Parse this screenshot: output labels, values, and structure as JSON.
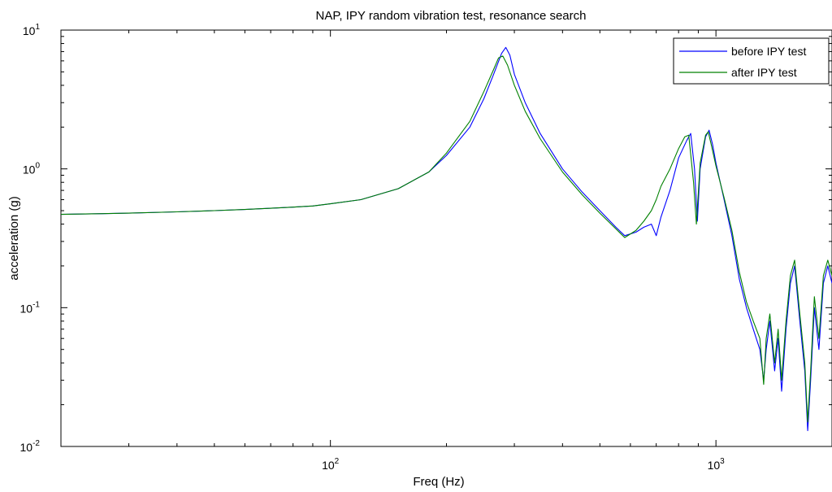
{
  "chart_data": {
    "type": "line",
    "title": "NAP, IPY random vibration test, resonance search",
    "xlabel": "Freq (Hz)",
    "ylabel": "acceleration (g)",
    "xscale": "log",
    "yscale": "log",
    "xlim": [
      20,
      2000
    ],
    "ylim": [
      0.01,
      10
    ],
    "xticks": [
      {
        "value": 100,
        "base": "10",
        "exp": "2"
      },
      {
        "value": 1000,
        "base": "10",
        "exp": "3"
      }
    ],
    "yticks": [
      {
        "value": 0.01,
        "base": "10",
        "exp": "-2"
      },
      {
        "value": 0.1,
        "base": "10",
        "exp": "-1"
      },
      {
        "value": 1,
        "base": "10",
        "exp": "0"
      },
      {
        "value": 10,
        "base": "10",
        "exp": "1"
      }
    ],
    "grid": false,
    "legend_position": "top-right",
    "series": [
      {
        "name": "before IPY test",
        "color": "#0000ff",
        "x": [
          20,
          30,
          40,
          50,
          60,
          70,
          80,
          90,
          100,
          120,
          150,
          180,
          200,
          230,
          250,
          265,
          278,
          285,
          292,
          300,
          320,
          350,
          400,
          450,
          500,
          550,
          580,
          620,
          650,
          680,
          700,
          720,
          760,
          800,
          840,
          860,
          880,
          895,
          910,
          940,
          960,
          980,
          1000,
          1050,
          1100,
          1150,
          1200,
          1250,
          1300,
          1330,
          1350,
          1380,
          1420,
          1450,
          1480,
          1520,
          1560,
          1600,
          1650,
          1700,
          1730,
          1760,
          1800,
          1850,
          1900,
          1950,
          2000
        ],
        "y": [
          0.47,
          0.48,
          0.49,
          0.5,
          0.51,
          0.52,
          0.53,
          0.54,
          0.56,
          0.6,
          0.72,
          0.95,
          1.25,
          2.0,
          3.2,
          4.8,
          6.8,
          7.5,
          6.6,
          4.8,
          3.0,
          1.8,
          1.0,
          0.68,
          0.5,
          0.38,
          0.33,
          0.35,
          0.38,
          0.4,
          0.33,
          0.45,
          0.7,
          1.2,
          1.6,
          1.8,
          1.0,
          0.42,
          1.0,
          1.7,
          1.9,
          1.5,
          1.1,
          0.6,
          0.33,
          0.16,
          0.1,
          0.07,
          0.05,
          0.03,
          0.05,
          0.08,
          0.035,
          0.06,
          0.025,
          0.07,
          0.15,
          0.2,
          0.08,
          0.035,
          0.013,
          0.03,
          0.1,
          0.05,
          0.15,
          0.2,
          0.15
        ]
      },
      {
        "name": "after IPY test",
        "color": "#008000",
        "x": [
          20,
          30,
          40,
          50,
          60,
          70,
          80,
          90,
          100,
          120,
          150,
          180,
          200,
          230,
          250,
          265,
          273,
          280,
          288,
          300,
          320,
          350,
          400,
          450,
          500,
          550,
          580,
          620,
          650,
          680,
          700,
          720,
          760,
          800,
          830,
          850,
          875,
          890,
          910,
          940,
          955,
          975,
          1000,
          1050,
          1100,
          1150,
          1200,
          1250,
          1300,
          1330,
          1350,
          1380,
          1420,
          1450,
          1480,
          1520,
          1560,
          1600,
          1650,
          1700,
          1730,
          1760,
          1800,
          1850,
          1900,
          1950,
          2000
        ],
        "y": [
          0.47,
          0.48,
          0.49,
          0.5,
          0.51,
          0.52,
          0.53,
          0.54,
          0.56,
          0.6,
          0.72,
          0.95,
          1.3,
          2.2,
          3.6,
          5.2,
          6.3,
          6.5,
          5.6,
          4.0,
          2.6,
          1.65,
          0.95,
          0.65,
          0.48,
          0.37,
          0.32,
          0.36,
          0.42,
          0.5,
          0.6,
          0.75,
          1.0,
          1.4,
          1.7,
          1.75,
          0.8,
          0.4,
          1.1,
          1.75,
          1.85,
          1.45,
          1.05,
          0.62,
          0.36,
          0.18,
          0.11,
          0.08,
          0.06,
          0.028,
          0.06,
          0.09,
          0.04,
          0.07,
          0.03,
          0.08,
          0.17,
          0.22,
          0.09,
          0.04,
          0.015,
          0.035,
          0.12,
          0.06,
          0.17,
          0.22,
          0.17
        ]
      }
    ]
  }
}
